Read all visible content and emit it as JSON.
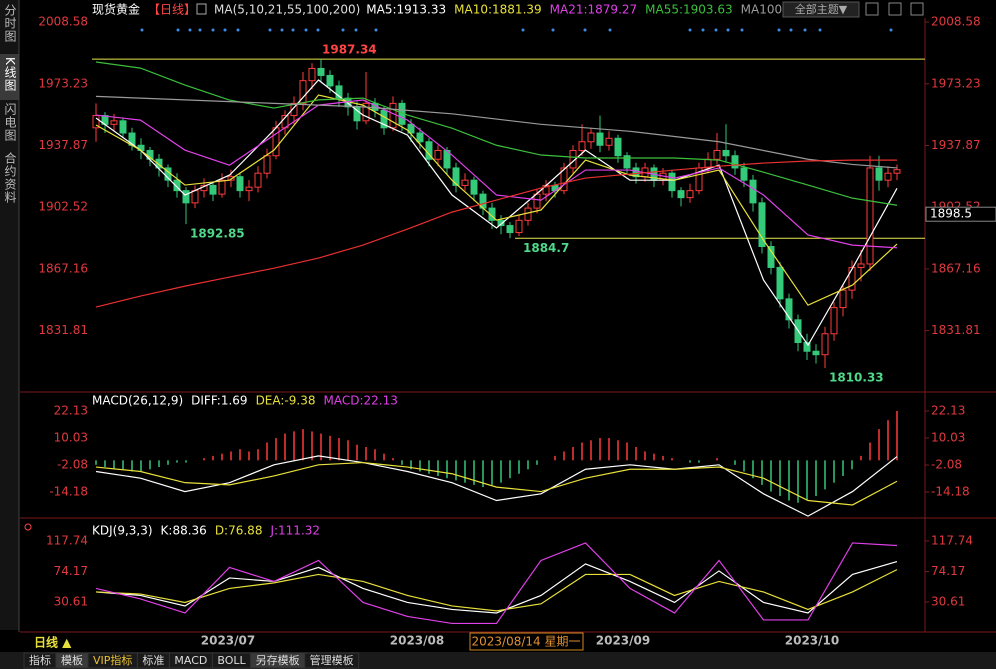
{
  "sidebar": [
    "分时图",
    "K线图",
    "闪电图",
    "合约资料"
  ],
  "header": {
    "theme_button": "全部主题▼"
  },
  "chart_data": [
    {
      "type": "candlestick",
      "title": "现货黄金",
      "period": "【日线】",
      "indicator": "MA(5,10,21,55,100,200)",
      "up_color": "#ff3b3b",
      "down_color": "#35c97a",
      "ylim": [
        1797.8,
        2010.9
      ],
      "yticks": [
        1831.81,
        1867.16,
        1902.52,
        1937.87,
        1973.23,
        2008.58
      ],
      "levels": [
        1987.34,
        1884.7
      ],
      "level_color": "#e8e84a",
      "annotations": [
        {
          "value": 1987.34,
          "color": "#ff4545"
        },
        {
          "value": 1892.85,
          "color": "#4fd88a"
        },
        {
          "value": 1884.7,
          "color": "#4fd88a"
        },
        {
          "value": 1810.33,
          "color": "#4fd88a"
        }
      ],
      "price_tag": 1898.5,
      "candles": [
        [
          1948,
          1962,
          1940,
          1955
        ],
        [
          1955,
          1957,
          1945,
          1950
        ],
        [
          1950,
          1956,
          1946,
          1952
        ],
        [
          1952,
          1954,
          1942,
          1945
        ],
        [
          1945,
          1948,
          1935,
          1938
        ],
        [
          1938,
          1942,
          1930,
          1935
        ],
        [
          1935,
          1937,
          1926,
          1930
        ],
        [
          1930,
          1933,
          1920,
          1925
        ],
        [
          1925,
          1927,
          1914,
          1918
        ],
        [
          1918,
          1922,
          1908,
          1912
        ],
        [
          1912,
          1914,
          1892.85,
          1905
        ],
        [
          1905,
          1915,
          1902,
          1912
        ],
        [
          1912,
          1919,
          1908,
          1915
        ],
        [
          1915,
          1917,
          1906,
          1910
        ],
        [
          1910,
          1922,
          1908,
          1918
        ],
        [
          1918,
          1924,
          1914,
          1920
        ],
        [
          1920,
          1922,
          1908,
          1912
        ],
        [
          1912,
          1918,
          1906,
          1914
        ],
        [
          1914,
          1926,
          1911,
          1922
        ],
        [
          1922,
          1936,
          1919,
          1932
        ],
        [
          1932,
          1952,
          1930,
          1948
        ],
        [
          1948,
          1958,
          1944,
          1955
        ],
        [
          1955,
          1966,
          1950,
          1962
        ],
        [
          1962,
          1980,
          1958,
          1975
        ],
        [
          1975,
          1985,
          1970,
          1982
        ],
        [
          1982,
          1987.34,
          1974,
          1978
        ],
        [
          1978,
          1981,
          1968,
          1972
        ],
        [
          1972,
          1975,
          1960,
          1965
        ],
        [
          1965,
          1968,
          1955,
          1960
        ],
        [
          1960,
          1963,
          1947,
          1952
        ],
        [
          1952,
          1980,
          1950,
          1962
        ],
        [
          1962,
          1965,
          1954,
          1958
        ],
        [
          1958,
          1960,
          1944,
          1948
        ],
        [
          1948,
          1966,
          1946,
          1962
        ],
        [
          1962,
          1964,
          1946,
          1950
        ],
        [
          1950,
          1953,
          1940,
          1945
        ],
        [
          1945,
          1948,
          1936,
          1940
        ],
        [
          1940,
          1942,
          1926,
          1930
        ],
        [
          1930,
          1938,
          1926,
          1935
        ],
        [
          1935,
          1937,
          1921,
          1925
        ],
        [
          1925,
          1928,
          1911,
          1915
        ],
        [
          1915,
          1922,
          1912,
          1918
        ],
        [
          1918,
          1920,
          1906,
          1910
        ],
        [
          1910,
          1912,
          1898,
          1902
        ],
        [
          1902,
          1905,
          1890,
          1895
        ],
        [
          1895,
          1898,
          1887,
          1892
        ],
        [
          1892,
          1894,
          1884.7,
          1888
        ],
        [
          1888,
          1898,
          1886,
          1895
        ],
        [
          1895,
          1905,
          1892,
          1902
        ],
        [
          1902,
          1913,
          1899,
          1910
        ],
        [
          1910,
          1918,
          1906,
          1915
        ],
        [
          1915,
          1917,
          1908,
          1912
        ],
        [
          1912,
          1928,
          1910,
          1925
        ],
        [
          1925,
          1938,
          1922,
          1935
        ],
        [
          1935,
          1950,
          1932,
          1940
        ],
        [
          1940,
          1948,
          1936,
          1945
        ],
        [
          1945,
          1955,
          1934,
          1938
        ],
        [
          1938,
          1946,
          1935,
          1942
        ],
        [
          1942,
          1944,
          1928,
          1932
        ],
        [
          1932,
          1934,
          1921,
          1925
        ],
        [
          1925,
          1928,
          1916,
          1920
        ],
        [
          1920,
          1928,
          1917,
          1925
        ],
        [
          1925,
          1927,
          1914,
          1918
        ],
        [
          1918,
          1925,
          1915,
          1922
        ],
        [
          1922,
          1924,
          1908,
          1912
        ],
        [
          1912,
          1914,
          1903,
          1908
        ],
        [
          1908,
          1916,
          1905,
          1912
        ],
        [
          1912,
          1928,
          1910,
          1925
        ],
        [
          1925,
          1934,
          1922,
          1930
        ],
        [
          1930,
          1945,
          1927,
          1935
        ],
        [
          1935,
          1950,
          1928,
          1932
        ],
        [
          1932,
          1935,
          1921,
          1925
        ],
        [
          1925,
          1928,
          1914,
          1918
        ],
        [
          1918,
          1921,
          1900,
          1905
        ],
        [
          1905,
          1908,
          1876,
          1880
        ],
        [
          1880,
          1883,
          1864,
          1868
        ],
        [
          1868,
          1871,
          1845,
          1850
        ],
        [
          1850,
          1853,
          1833,
          1838
        ],
        [
          1838,
          1841,
          1820,
          1825
        ],
        [
          1825,
          1830,
          1815,
          1820
        ],
        [
          1820,
          1824,
          1813,
          1818
        ],
        [
          1818,
          1834,
          1810.33,
          1830
        ],
        [
          1830,
          1848,
          1826,
          1845
        ],
        [
          1845,
          1858,
          1840,
          1855
        ],
        [
          1855,
          1872,
          1850,
          1868
        ],
        [
          1868,
          1878,
          1860,
          1870
        ],
        [
          1870,
          1932,
          1866,
          1925
        ],
        [
          1925,
          1932,
          1912,
          1918
        ],
        [
          1918,
          1926,
          1914,
          1922
        ],
        [
          1922,
          1927,
          1918,
          1924
        ]
      ],
      "series": [
        {
          "label": "MA5:1913.33",
          "color": "#ffffff",
          "values": [
            1953.6,
            1935.2,
            1909.5,
            1920.9,
            1946.7,
            1975.4,
            1955.3,
            1943.8,
            1909.5,
            1890.6,
            1912.3,
            1935.2,
            1918,
            1918,
            1926.6,
            1860.8,
            1823.5,
            1867.6,
            1913.33
          ]
        },
        {
          "label": "MA10:1881.39",
          "color": "#e8e03a",
          "values": [
            1949.6,
            1935.2,
            1915.2,
            1918,
            1935.2,
            1966.8,
            1961,
            1946.7,
            1918,
            1895.1,
            1900.9,
            1929.5,
            1920.9,
            1918,
            1923.8,
            1883.7,
            1846.4,
            1857.9,
            1881.39
          ]
        },
        {
          "label": "MA21:1879.27",
          "color": "#e040e8",
          "values": [
            1955.3,
            1952.4,
            1935.2,
            1926.6,
            1943.8,
            1961,
            1963.9,
            1952.4,
            1932.4,
            1909.5,
            1906.6,
            1923.8,
            1923.8,
            1919.2,
            1925,
            1909.5,
            1886.6,
            1880.8,
            1879.27
          ]
        },
        {
          "label": "MA55:1903.63",
          "color": "#3cc03c",
          "values": [
            1985.7,
            1982.2,
            1972.5,
            1963.9,
            1959.3,
            1964,
            1965,
            1955.3,
            1947.8,
            1938,
            1932.4,
            1930.7,
            1930.7,
            1930.7,
            1929.5,
            1922.6,
            1915.2,
            1907.7,
            1903.63
          ]
        },
        {
          "label": "MA100",
          "color": "#9a9a9a",
          "values": [
            1966,
            1965,
            1964,
            1963,
            1962,
            1961,
            1960,
            1958,
            1956,
            1953,
            1950,
            1948,
            1946,
            1943,
            1940,
            1935,
            1930,
            1927,
            1925
          ]
        },
        {
          "color": "#e83030",
          "values": [
            1845.3,
            1851.6,
            1857.3,
            1862.5,
            1867.6,
            1873.4,
            1880.8,
            1890,
            1899.7,
            1906.6,
            1913.5,
            1919.2,
            1921.5,
            1923.8,
            1926,
            1927.8,
            1929,
            1929.5,
            1929.5
          ]
        }
      ]
    },
    {
      "type": "macd",
      "title": "MACD(26,12,9)",
      "ylim": [
        -25.4,
        28.85
      ],
      "yticks": [
        -14.18,
        -2.08,
        10.03,
        22.13
      ],
      "histogram": {
        "label": "MACD:22.13",
        "color": "#e040e8",
        "up_color": "#ff3b3b",
        "down_color": "#35c97a",
        "values": [
          -2,
          -3,
          -4,
          -4,
          -5,
          -5,
          -4,
          -3,
          -2,
          -1,
          -1,
          0,
          1,
          2,
          3,
          4,
          5,
          4,
          5,
          8,
          10,
          12,
          13,
          14,
          13,
          12,
          11,
          10,
          9,
          7,
          6,
          5,
          3,
          1,
          -2,
          -4,
          -5,
          -6,
          -7,
          -8,
          -9,
          -10,
          -11,
          -12,
          -11,
          -10,
          -8,
          -6,
          -4,
          -2,
          0,
          2,
          4,
          6,
          8,
          9,
          10,
          10,
          9,
          8,
          6,
          4,
          3,
          2,
          1,
          0,
          -1,
          -1,
          0,
          1,
          0,
          -2,
          -5,
          -8,
          -11,
          -14,
          -16,
          -18,
          -19,
          -18,
          -16,
          -13,
          -10,
          -7,
          -4,
          2,
          8,
          14,
          18,
          22.13
        ]
      },
      "series": [
        {
          "label": "DIFF:1.69",
          "color": "#ffffff",
          "values": [
            -5,
            -8,
            -14,
            -10,
            -2,
            2,
            -1,
            -5,
            -10,
            -18,
            -15,
            -4,
            -2,
            -4,
            -2,
            -15,
            -25,
            -14,
            1.69
          ]
        },
        {
          "label": "DEA:-9.38",
          "color": "#e8e03a",
          "values": [
            -3,
            -5,
            -10,
            -11,
            -7,
            -2,
            -1,
            -3,
            -6,
            -12,
            -14,
            -8,
            -4,
            -4,
            -3,
            -8,
            -18,
            -20,
            -9.38
          ]
        }
      ]
    },
    {
      "type": "line",
      "title": "KDJ(9,3,3)",
      "ylim": [
        -12.2,
        144.9
      ],
      "yticks": [
        30.61,
        74.17,
        117.74
      ],
      "series": [
        {
          "label": "K:88.36",
          "color": "#ffffff",
          "values": [
            45,
            40,
            25,
            65,
            60,
            80,
            50,
            30,
            20,
            15,
            40,
            85,
            60,
            30,
            75,
            30,
            15,
            70,
            88.36
          ]
        },
        {
          "label": "D:76.88",
          "color": "#e8e03a",
          "values": [
            45,
            42,
            30,
            50,
            58,
            70,
            60,
            40,
            25,
            18,
            28,
            70,
            70,
            40,
            60,
            45,
            20,
            45,
            76.88
          ]
        },
        {
          "label": "J:111.32",
          "color": "#e040e8",
          "values": [
            50,
            35,
            15,
            80,
            60,
            90,
            30,
            10,
            0,
            0,
            90,
            115,
            50,
            15,
            90,
            5,
            5,
            115,
            111.32
          ]
        }
      ]
    }
  ],
  "footer": {
    "period": "日线 ▲",
    "dates": [
      "2023/07",
      "2023/08",
      "2023/09",
      "2023/10"
    ],
    "cursor_date": "2023/08/14 星期一"
  },
  "toolbar": [
    "指标",
    "模板",
    "VIP指标",
    "标准",
    "MACD",
    "BOLL",
    "另存模板",
    "管理模板"
  ]
}
